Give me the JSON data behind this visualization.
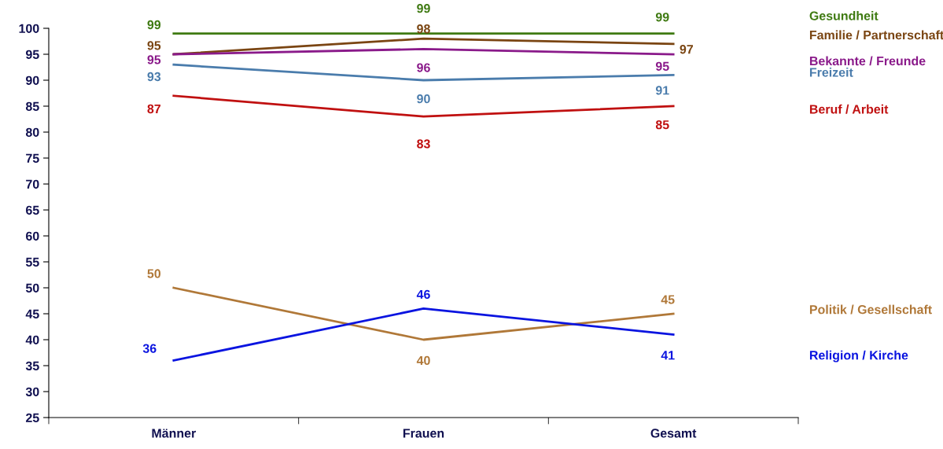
{
  "chart_data": {
    "type": "line",
    "categories": [
      "Männer",
      "Frauen",
      "Gesamt"
    ],
    "ylim": [
      25,
      100
    ],
    "yticks": [
      25,
      30,
      35,
      40,
      45,
      50,
      55,
      60,
      65,
      70,
      75,
      80,
      85,
      90,
      95,
      100
    ],
    "grid": false,
    "legend": false,
    "marker": "none",
    "line_style": "solid",
    "data_labels": true,
    "series": [
      {
        "name": "Gesundheit",
        "color": "#3f7a12",
        "values": [
          99,
          99,
          99
        ]
      },
      {
        "name": "Familie / Partnerschaft",
        "color": "#7a4512",
        "values": [
          95,
          98,
          97
        ]
      },
      {
        "name": "Bekannte / Freunde",
        "color": "#8a1a8a",
        "values": [
          95,
          96,
          95
        ]
      },
      {
        "name": "Freizeit",
        "color": "#4a7cac",
        "values": [
          93,
          90,
          91
        ]
      },
      {
        "name": "Beruf / Arbeit",
        "color": "#c01010",
        "values": [
          87,
          83,
          85
        ]
      },
      {
        "name": "Politik / Gesellschaft",
        "color": "#b07838",
        "values": [
          50,
          40,
          45
        ]
      },
      {
        "name": "Religion / Kirche",
        "color": "#0a14e0",
        "values": [
          36,
          46,
          41
        ]
      }
    ]
  }
}
